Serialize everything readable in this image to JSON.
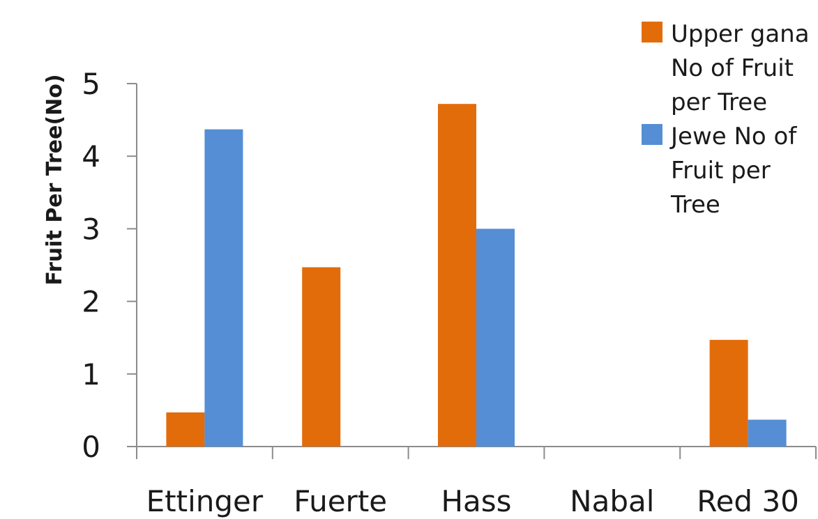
{
  "chart_data": {
    "type": "bar",
    "title": "",
    "xlabel": "",
    "ylabel": "Fruit Per Tree(No)",
    "ylim": [
      0,
      5
    ],
    "yticks": [
      "0",
      "1",
      "2",
      "3",
      "4",
      "5"
    ],
    "categories": [
      "Ettinger",
      "Fuerte",
      "Hass",
      "Nabal",
      "Red 30"
    ],
    "series": [
      {
        "name": "Upper gana No of Fruit per Tree",
        "legend_lines": [
          "Upper gana",
          "No of  Fruit",
          "per Tree"
        ],
        "color": "#E36C0A",
        "values": [
          0.47,
          2.47,
          4.72,
          0,
          1.47
        ]
      },
      {
        "name": "Jewe No of Fruit per Tree",
        "legend_lines": [
          "Jewe No of",
          "Fruit per",
          "Tree"
        ],
        "color": "#558ED5",
        "values": [
          4.37,
          0,
          3.0,
          0,
          0.37
        ]
      }
    ],
    "grid": false,
    "legend_position": "top-right"
  }
}
